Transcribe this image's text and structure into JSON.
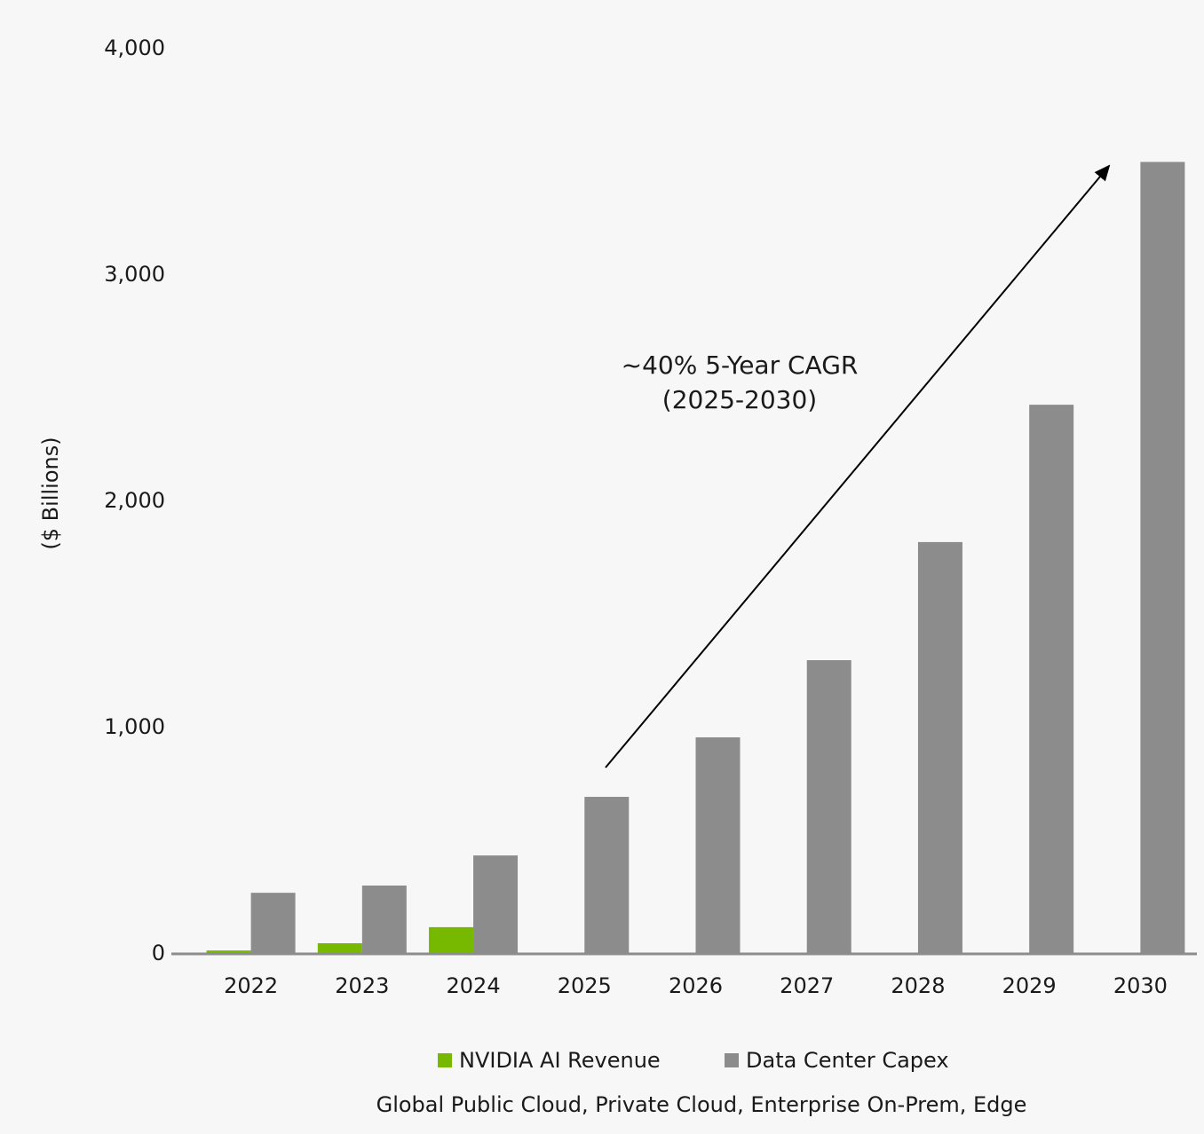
{
  "chart_data": {
    "type": "bar",
    "y_axis_label": "($ Billions)",
    "subtitle": "Global Public Cloud, Private Cloud, Enterprise On-Prem, Edge",
    "annotation": [
      "~40% 5-Year CAGR",
      "(2025-2030)"
    ],
    "categories": [
      "2022",
      "2023",
      "2024",
      "2025",
      "2026",
      "2027",
      "2028",
      "2029",
      "2030"
    ],
    "series": [
      {
        "name": "NVIDIA AI Revenue",
        "color": "#76b900",
        "values": [
          15,
          47,
          118,
          null,
          null,
          null,
          null,
          null,
          null
        ]
      },
      {
        "name": "Data Center Capex",
        "color": "#8c8c8c",
        "values": [
          270,
          302,
          435,
          694,
          957,
          1298,
          1820,
          2427,
          3500
        ]
      }
    ],
    "ylim": [
      0,
      4000
    ],
    "yticks": [
      0,
      {
        "value": 1000,
        "label": "1,000"
      },
      {
        "value": 2000,
        "label": "2,000"
      },
      {
        "value": 3000,
        "label": "3,000"
      },
      {
        "value": 4000,
        "label": "4,000"
      }
    ],
    "grid": false,
    "legend": "bottom"
  }
}
